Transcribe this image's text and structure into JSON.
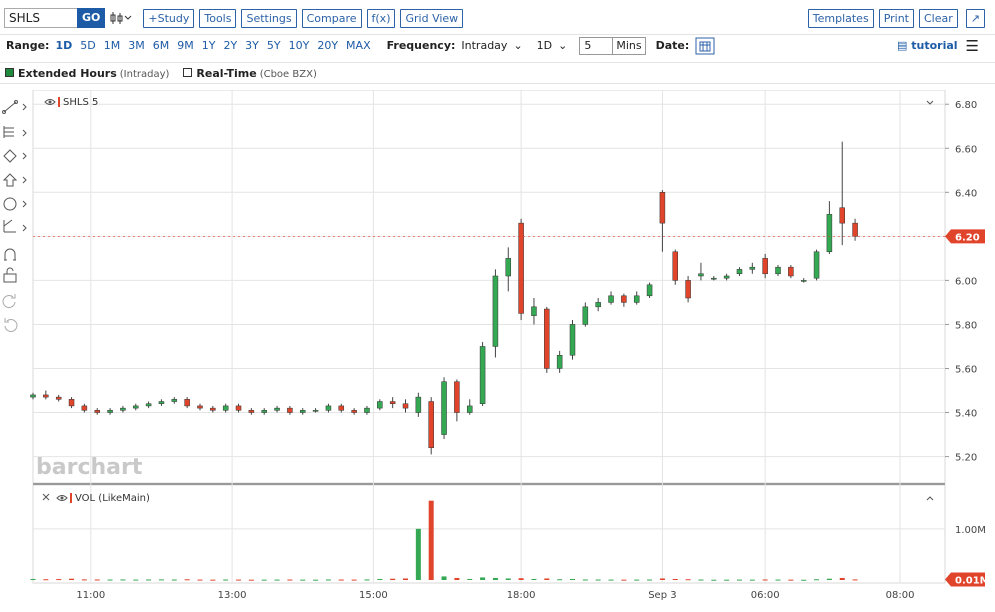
{
  "toolbar": {
    "symbol": "SHLS",
    "go": "GO",
    "buttons": [
      "+Study",
      "Tools",
      "Settings",
      "Compare",
      "f(x)",
      "Grid View"
    ],
    "right_buttons": [
      "Templates",
      "Print",
      "Clear"
    ]
  },
  "range_bar": {
    "range_label": "Range:",
    "ranges": [
      "1D",
      "5D",
      "1M",
      "3M",
      "6M",
      "9M",
      "1Y",
      "2Y",
      "3Y",
      "5Y",
      "10Y",
      "20Y",
      "MAX"
    ],
    "frequency_label": "Frequency:",
    "frequency": "Intraday",
    "period": "1D",
    "interval": "5",
    "interval_unit": "Mins",
    "date_label": "Date:",
    "tutorial": "tutorial"
  },
  "legend_bar": {
    "items": [
      {
        "label": "Extended Hours",
        "note": "(Intraday)",
        "color": "#1f8a3b"
      },
      {
        "label": "Real-Time",
        "note": "(Cboe BZX)",
        "color": "#ffffff"
      }
    ]
  },
  "chart_data": {
    "type": "candlestick",
    "title": "SHLS 5",
    "watermark": "barchart",
    "up_color": "#35a853",
    "down_color": "#e0452c",
    "grid": true,
    "x": [
      0,
      2,
      4,
      6,
      8,
      10,
      12,
      14,
      16,
      18,
      20,
      22,
      24,
      26,
      28,
      30,
      32,
      34,
      36,
      38,
      40,
      42,
      44,
      46,
      48,
      50,
      52,
      54,
      56,
      58,
      60,
      62,
      64,
      66,
      68,
      70,
      72,
      74,
      76,
      78,
      80,
      82,
      84,
      86,
      88,
      90,
      92,
      94,
      96,
      98,
      100,
      102,
      104,
      106,
      108,
      110,
      112,
      114,
      116,
      118,
      120,
      122,
      124,
      126,
      128
    ],
    "open": [
      5.47,
      5.48,
      5.47,
      5.46,
      5.43,
      5.41,
      5.4,
      5.41,
      5.42,
      5.43,
      5.44,
      5.45,
      5.46,
      5.43,
      5.42,
      5.41,
      5.43,
      5.41,
      5.4,
      5.41,
      5.42,
      5.4,
      5.41,
      5.41,
      5.43,
      5.41,
      5.4,
      5.42,
      5.45,
      5.44,
      5.4,
      5.45,
      5.3,
      5.54,
      5.4,
      5.44,
      5.7,
      6.02,
      6.26,
      5.84,
      5.87,
      5.6,
      5.66,
      5.8,
      5.88,
      5.9,
      5.93,
      5.9,
      5.93,
      6.4,
      6.13,
      6.0,
      6.02,
      6.01,
      6.01,
      6.03,
      6.05,
      6.1,
      6.03,
      6.06,
      6.0,
      6.01,
      6.13,
      6.33,
      6.26
    ],
    "high": [
      5.49,
      5.5,
      5.48,
      5.47,
      5.44,
      5.42,
      5.42,
      5.43,
      5.44,
      5.45,
      5.46,
      5.47,
      5.47,
      5.44,
      5.43,
      5.44,
      5.44,
      5.42,
      5.42,
      5.43,
      5.43,
      5.42,
      5.42,
      5.44,
      5.44,
      5.42,
      5.43,
      5.46,
      5.47,
      5.46,
      5.49,
      5.47,
      5.56,
      5.55,
      5.46,
      5.72,
      6.05,
      6.15,
      6.28,
      5.92,
      5.88,
      5.68,
      5.82,
      5.9,
      5.92,
      5.95,
      5.94,
      5.95,
      5.99,
      6.41,
      6.14,
      6.02,
      6.08,
      6.02,
      6.03,
      6.06,
      6.08,
      6.12,
      6.07,
      6.07,
      6.01,
      6.14,
      6.36,
      6.63,
      6.28
    ],
    "low": [
      5.46,
      5.46,
      5.45,
      5.42,
      5.4,
      5.39,
      5.39,
      5.4,
      5.41,
      5.42,
      5.43,
      5.44,
      5.42,
      5.41,
      5.4,
      5.4,
      5.4,
      5.39,
      5.39,
      5.4,
      5.39,
      5.39,
      5.4,
      5.4,
      5.4,
      5.39,
      5.39,
      5.41,
      5.42,
      5.4,
      5.38,
      5.21,
      5.28,
      5.36,
      5.39,
      5.43,
      5.65,
      5.95,
      5.82,
      5.8,
      5.58,
      5.58,
      5.64,
      5.79,
      5.86,
      5.89,
      5.88,
      5.89,
      5.92,
      6.13,
      5.98,
      5.9,
      6.0,
      6.0,
      6.0,
      6.02,
      6.03,
      6.01,
      6.02,
      6.01,
      5.99,
      6.0,
      6.12,
      6.16,
      6.18
    ],
    "close": [
      5.48,
      5.47,
      5.46,
      5.43,
      5.41,
      5.4,
      5.41,
      5.42,
      5.43,
      5.44,
      5.45,
      5.46,
      5.43,
      5.42,
      5.41,
      5.43,
      5.41,
      5.4,
      5.41,
      5.42,
      5.4,
      5.41,
      5.41,
      5.43,
      5.41,
      5.4,
      5.42,
      5.45,
      5.44,
      5.42,
      5.47,
      5.24,
      5.54,
      5.4,
      5.43,
      5.7,
      6.02,
      6.1,
      5.85,
      5.88,
      5.6,
      5.66,
      5.8,
      5.88,
      5.9,
      5.93,
      5.9,
      5.93,
      5.98,
      6.26,
      6.0,
      5.92,
      6.03,
      6.01,
      6.02,
      6.05,
      6.06,
      6.03,
      6.06,
      6.02,
      6.0,
      6.13,
      6.3,
      6.26,
      6.2
    ],
    "xlim": [
      0,
      142
    ],
    "xticks": [
      {
        "value": 9,
        "label": "11:00"
      },
      {
        "value": 31,
        "label": "13:00"
      },
      {
        "value": 53,
        "label": "15:00"
      },
      {
        "value": 76,
        "label": "18:00"
      },
      {
        "value": 98,
        "label": "Sep 3"
      },
      {
        "value": 114,
        "label": "06:00"
      },
      {
        "value": 135,
        "label": "08:00"
      }
    ],
    "ylim": [
      5.08,
      6.86
    ],
    "yticks": [
      {
        "value": 5.2,
        "label": "5.20"
      },
      {
        "value": 5.4,
        "label": "5.40"
      },
      {
        "value": 5.6,
        "label": "5.60"
      },
      {
        "value": 5.8,
        "label": "5.80"
      },
      {
        "value": 6.0,
        "label": "6.00"
      },
      {
        "value": 6.2,
        "label": "6.20"
      },
      {
        "value": 6.4,
        "label": "6.40"
      },
      {
        "value": 6.6,
        "label": "6.60"
      },
      {
        "value": 6.8,
        "label": "6.80"
      }
    ],
    "last_price": {
      "value": 6.2,
      "label": "6.20"
    },
    "volume": {
      "title": "VOL (LikeMain)",
      "values": [
        20000,
        15000,
        18000,
        25000,
        12000,
        10000,
        9000,
        11000,
        8000,
        10000,
        12000,
        9000,
        14000,
        8000,
        7000,
        9000,
        8000,
        6000,
        7000,
        8000,
        9000,
        7000,
        6000,
        10000,
        9000,
        8000,
        11000,
        20000,
        25000,
        30000,
        1000000,
        1550000,
        70000,
        40000,
        20000,
        50000,
        40000,
        30000,
        35000,
        20000,
        30000,
        15000,
        20000,
        10000,
        9000,
        8000,
        7000,
        8000,
        9000,
        30000,
        20000,
        15000,
        9000,
        5000,
        6000,
        8000,
        7000,
        10000,
        8000,
        7000,
        5000,
        15000,
        25000,
        40000,
        12000
      ],
      "ylim": [
        0,
        1700000
      ],
      "yticks": [
        {
          "value": 1000000,
          "label": "1.00M"
        }
      ],
      "last": {
        "value": 10000,
        "label": "0.01M"
      }
    }
  }
}
